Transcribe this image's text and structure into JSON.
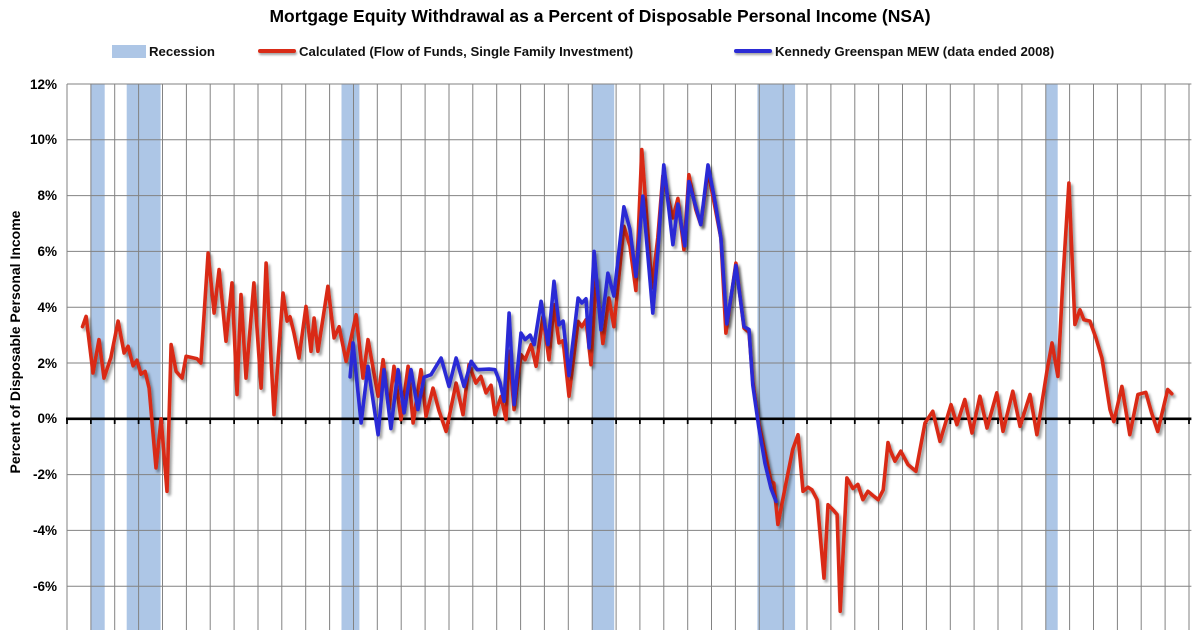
{
  "chart_data": {
    "type": "line",
    "title": "Mortgage Equity Withdrawal as a Percent of Disposable Personal Income (NSA)",
    "background_color": "#ffffff",
    "gridline_color": "#828282",
    "zero_line_color": "#000000",
    "recession_color": "#adc6e6",
    "legend": [
      {
        "id": "recession",
        "label": "Recession",
        "swatch": "band",
        "color": "#adc6e6"
      },
      {
        "id": "calculated",
        "label": "Calculated (Flow of Funds, Single Family Investment)",
        "swatch": "line",
        "color": "#d92b17"
      },
      {
        "id": "kennedy",
        "label": "Kennedy Greenspan MEW (data ended 2008)",
        "swatch": "line",
        "color": "#2b2bd5"
      }
    ],
    "y_axis": {
      "title": "Percent of Disposable Personal Income",
      "tick_labels": [
        "12%",
        "10%",
        "8%",
        "6%",
        "4%",
        "2%",
        "0%",
        "-2%",
        "-4%",
        "-6%"
      ],
      "tick_values": [
        12,
        10,
        8,
        6,
        4,
        2,
        0,
        -2,
        -4,
        -6
      ],
      "gridline_interval": 2,
      "top": 12,
      "bottom_visible": -7.6,
      "zero_line": true
    },
    "x_axis": {
      "start_year": 1979,
      "end_year": 2026.1,
      "gridline_interval_years": 1,
      "tick_labels_visible": false
    },
    "recessions": [
      {
        "label": "1980",
        "start": 1980.0,
        "end": 1980.58
      },
      {
        "label": "1981-1982",
        "start": 1981.5,
        "end": 1982.92
      },
      {
        "label": "1990-1991",
        "start": 1990.5,
        "end": 1991.25
      },
      {
        "label": "2001",
        "start": 2001.0,
        "end": 2001.92
      },
      {
        "label": "2007-2009",
        "start": 2007.92,
        "end": 2009.5
      },
      {
        "label": "2020",
        "start": 2020.0,
        "end": 2020.5
      }
    ],
    "series": [
      {
        "name": "Calculated (Flow of Funds, Single Family Investment)",
        "color": "#d92b17",
        "points": [
          [
            1979.65,
            3.3
          ],
          [
            1979.8,
            3.67
          ],
          [
            1980.09,
            1.64
          ],
          [
            1980.34,
            2.84
          ],
          [
            1980.55,
            1.46
          ],
          [
            1980.84,
            2.2
          ],
          [
            1981.14,
            3.5
          ],
          [
            1981.39,
            2.36
          ],
          [
            1981.56,
            2.6
          ],
          [
            1981.77,
            1.9
          ],
          [
            1981.93,
            2.1
          ],
          [
            1982.1,
            1.6
          ],
          [
            1982.27,
            1.7
          ],
          [
            1982.44,
            1.1
          ],
          [
            1982.73,
            -1.76
          ],
          [
            1982.94,
            0.0
          ],
          [
            1983.19,
            -2.6
          ],
          [
            1983.36,
            2.66
          ],
          [
            1983.57,
            1.7
          ],
          [
            1983.82,
            1.46
          ],
          [
            1983.99,
            2.24
          ],
          [
            1984.2,
            2.2
          ],
          [
            1984.45,
            2.15
          ],
          [
            1984.61,
            2.0
          ],
          [
            1984.91,
            5.94
          ],
          [
            1985.16,
            3.79
          ],
          [
            1985.37,
            5.35
          ],
          [
            1985.66,
            2.78
          ],
          [
            1985.91,
            4.87
          ],
          [
            1986.12,
            0.87
          ],
          [
            1986.29,
            4.45
          ],
          [
            1986.5,
            1.46
          ],
          [
            1986.83,
            4.87
          ],
          [
            1987.13,
            1.1
          ],
          [
            1987.34,
            5.58
          ],
          [
            1987.67,
            0.15
          ],
          [
            1988.05,
            4.51
          ],
          [
            1988.22,
            3.5
          ],
          [
            1988.34,
            3.66
          ],
          [
            1988.51,
            3.07
          ],
          [
            1988.72,
            2.18
          ],
          [
            1989.01,
            4.03
          ],
          [
            1989.22,
            2.42
          ],
          [
            1989.35,
            3.61
          ],
          [
            1989.51,
            2.42
          ],
          [
            1989.93,
            4.75
          ],
          [
            1990.19,
            2.9
          ],
          [
            1990.4,
            3.3
          ],
          [
            1990.69,
            2.06
          ],
          [
            1991.11,
            3.73
          ],
          [
            1991.4,
            1.46
          ],
          [
            1991.61,
            2.84
          ],
          [
            1992.03,
            0.81
          ],
          [
            1992.24,
            2.12
          ],
          [
            1992.49,
            0.33
          ],
          [
            1992.7,
            1.88
          ],
          [
            1992.99,
            -0.03
          ],
          [
            1993.29,
            1.88
          ],
          [
            1993.5,
            -0.15
          ],
          [
            1993.83,
            1.76
          ],
          [
            1994.04,
            0.09
          ],
          [
            1994.33,
            1.1
          ],
          [
            1994.58,
            0.3
          ],
          [
            1994.88,
            -0.45
          ],
          [
            1995.3,
            1.28
          ],
          [
            1995.59,
            0.15
          ],
          [
            1995.84,
            1.94
          ],
          [
            1996.13,
            1.28
          ],
          [
            1996.34,
            1.52
          ],
          [
            1996.55,
            0.93
          ],
          [
            1996.76,
            1.2
          ],
          [
            1996.93,
            0.15
          ],
          [
            1997.18,
            0.8
          ],
          [
            1997.39,
            -0.03
          ],
          [
            1997.52,
            2.42
          ],
          [
            1997.73,
            0.33
          ],
          [
            1998.02,
            2.3
          ],
          [
            1998.19,
            2.12
          ],
          [
            1998.44,
            2.66
          ],
          [
            1998.65,
            1.88
          ],
          [
            1998.94,
            3.67
          ],
          [
            1999.19,
            2.12
          ],
          [
            1999.4,
            4.09
          ],
          [
            1999.61,
            2.72
          ],
          [
            1999.78,
            2.8
          ],
          [
            2000.03,
            0.81
          ],
          [
            2000.41,
            3.49
          ],
          [
            2000.57,
            3.3
          ],
          [
            2000.74,
            3.55
          ],
          [
            2000.95,
            1.94
          ],
          [
            2001.16,
            5.04
          ],
          [
            2001.45,
            2.7
          ],
          [
            2001.7,
            4.33
          ],
          [
            2001.91,
            3.3
          ],
          [
            2002.33,
            6.9
          ],
          [
            2002.58,
            6.2
          ],
          [
            2002.83,
            4.6
          ],
          [
            2003.08,
            9.65
          ],
          [
            2003.5,
            4.69
          ],
          [
            2003.75,
            6.5
          ],
          [
            2003.96,
            8.7
          ],
          [
            2004.38,
            7.2
          ],
          [
            2004.59,
            7.9
          ],
          [
            2004.84,
            6.06
          ],
          [
            2005.05,
            8.75
          ],
          [
            2005.34,
            7.5
          ],
          [
            2005.55,
            6.96
          ],
          [
            2005.85,
            8.9
          ],
          [
            2006.14,
            7.6
          ],
          [
            2006.39,
            6.48
          ],
          [
            2006.6,
            3.07
          ],
          [
            2007.02,
            5.58
          ],
          [
            2007.36,
            3.25
          ],
          [
            2007.57,
            3.1
          ],
          [
            2007.73,
            1.34
          ],
          [
            2007.94,
            0.0
          ],
          [
            2008.24,
            -1.2
          ],
          [
            2008.49,
            -2.24
          ],
          [
            2008.61,
            -2.3
          ],
          [
            2008.78,
            -3.79
          ],
          [
            2009.12,
            -2.3
          ],
          [
            2009.4,
            -1.1
          ],
          [
            2009.62,
            -0.57
          ],
          [
            2009.83,
            -2.6
          ],
          [
            2010.04,
            -2.45
          ],
          [
            2010.21,
            -2.55
          ],
          [
            2010.42,
            -2.9
          ],
          [
            2010.71,
            -5.71
          ],
          [
            2010.88,
            -3.08
          ],
          [
            2011.13,
            -3.3
          ],
          [
            2011.26,
            -3.43
          ],
          [
            2011.39,
            -6.9
          ],
          [
            2011.67,
            -2.12
          ],
          [
            2011.92,
            -2.5
          ],
          [
            2012.13,
            -2.35
          ],
          [
            2012.34,
            -2.9
          ],
          [
            2012.55,
            -2.6
          ],
          [
            2012.76,
            -2.75
          ],
          [
            2012.98,
            -2.9
          ],
          [
            2013.19,
            -2.55
          ],
          [
            2013.39,
            -0.85
          ],
          [
            2013.47,
            -1.1
          ],
          [
            2013.68,
            -1.52
          ],
          [
            2013.93,
            -1.16
          ],
          [
            2014.23,
            -1.64
          ],
          [
            2014.56,
            -1.88
          ],
          [
            2014.94,
            -0.15
          ],
          [
            2015.27,
            0.27
          ],
          [
            2015.57,
            -0.81
          ],
          [
            2016.03,
            0.51
          ],
          [
            2016.28,
            -0.21
          ],
          [
            2016.61,
            0.69
          ],
          [
            2016.91,
            -0.51
          ],
          [
            2017.24,
            0.81
          ],
          [
            2017.54,
            -0.33
          ],
          [
            2017.95,
            0.93
          ],
          [
            2018.21,
            -0.45
          ],
          [
            2018.62,
            0.99
          ],
          [
            2018.92,
            -0.27
          ],
          [
            2019.34,
            0.87
          ],
          [
            2019.63,
            -0.57
          ],
          [
            2020.05,
            1.7
          ],
          [
            2020.26,
            2.72
          ],
          [
            2020.51,
            1.52
          ],
          [
            2020.72,
            5.0
          ],
          [
            2020.97,
            8.45
          ],
          [
            2021.22,
            3.38
          ],
          [
            2021.43,
            3.91
          ],
          [
            2021.6,
            3.55
          ],
          [
            2021.85,
            3.5
          ],
          [
            2022.1,
            2.9
          ],
          [
            2022.35,
            2.18
          ],
          [
            2022.69,
            0.33
          ],
          [
            2022.85,
            -0.1
          ],
          [
            2023.19,
            1.16
          ],
          [
            2023.52,
            -0.57
          ],
          [
            2023.86,
            0.87
          ],
          [
            2024.19,
            0.95
          ],
          [
            2024.44,
            0.2
          ],
          [
            2024.69,
            -0.45
          ],
          [
            2025.11,
            1.05
          ],
          [
            2025.28,
            0.9
          ]
        ]
      },
      {
        "name": "Kennedy Greenspan MEW (data ended 2008)",
        "color": "#2b2bd5",
        "points": [
          [
            1990.86,
            1.5
          ],
          [
            1990.98,
            2.72
          ],
          [
            1991.32,
            -0.15
          ],
          [
            1991.61,
            1.88
          ],
          [
            1992.03,
            -0.57
          ],
          [
            1992.28,
            1.76
          ],
          [
            1992.57,
            -0.35
          ],
          [
            1992.87,
            1.76
          ],
          [
            1993.12,
            0.21
          ],
          [
            1993.41,
            1.76
          ],
          [
            1993.7,
            0.33
          ],
          [
            1993.96,
            1.49
          ],
          [
            1994.25,
            1.58
          ],
          [
            1994.67,
            2.18
          ],
          [
            1995.0,
            1.16
          ],
          [
            1995.3,
            2.18
          ],
          [
            1995.63,
            1.16
          ],
          [
            1995.93,
            2.06
          ],
          [
            1996.18,
            1.76
          ],
          [
            1996.68,
            1.78
          ],
          [
            1996.93,
            1.76
          ],
          [
            1997.14,
            1.3
          ],
          [
            1997.31,
            0.63
          ],
          [
            1997.52,
            3.79
          ],
          [
            1997.73,
            0.51
          ],
          [
            1998.02,
            3.07
          ],
          [
            1998.19,
            2.84
          ],
          [
            1998.4,
            3.0
          ],
          [
            1998.57,
            2.66
          ],
          [
            1998.86,
            4.21
          ],
          [
            1999.15,
            2.66
          ],
          [
            1999.4,
            4.93
          ],
          [
            1999.61,
            3.37
          ],
          [
            1999.78,
            3.5
          ],
          [
            2000.03,
            1.55
          ],
          [
            2000.41,
            4.33
          ],
          [
            2000.57,
            4.15
          ],
          [
            2000.74,
            4.3
          ],
          [
            2000.87,
            2.54
          ],
          [
            2001.08,
            6.0
          ],
          [
            2001.37,
            3.19
          ],
          [
            2001.66,
            5.22
          ],
          [
            2001.91,
            4.4
          ],
          [
            2002.33,
            7.6
          ],
          [
            2002.58,
            6.8
          ],
          [
            2002.83,
            5.1
          ],
          [
            2003.12,
            7.98
          ],
          [
            2003.54,
            3.79
          ],
          [
            2003.75,
            6.0
          ],
          [
            2004.0,
            9.1
          ],
          [
            2004.38,
            6.24
          ],
          [
            2004.59,
            7.7
          ],
          [
            2004.88,
            6.2
          ],
          [
            2005.05,
            8.5
          ],
          [
            2005.34,
            7.6
          ],
          [
            2005.55,
            6.96
          ],
          [
            2005.85,
            9.1
          ],
          [
            2006.14,
            7.8
          ],
          [
            2006.39,
            6.48
          ],
          [
            2006.64,
            3.4
          ],
          [
            2007.02,
            5.5
          ],
          [
            2007.36,
            3.3
          ],
          [
            2007.57,
            3.2
          ],
          [
            2007.73,
            1.2
          ],
          [
            2007.98,
            -0.3
          ],
          [
            2008.24,
            -1.6
          ],
          [
            2008.49,
            -2.5
          ],
          [
            2008.7,
            -2.96
          ]
        ]
      }
    ]
  }
}
